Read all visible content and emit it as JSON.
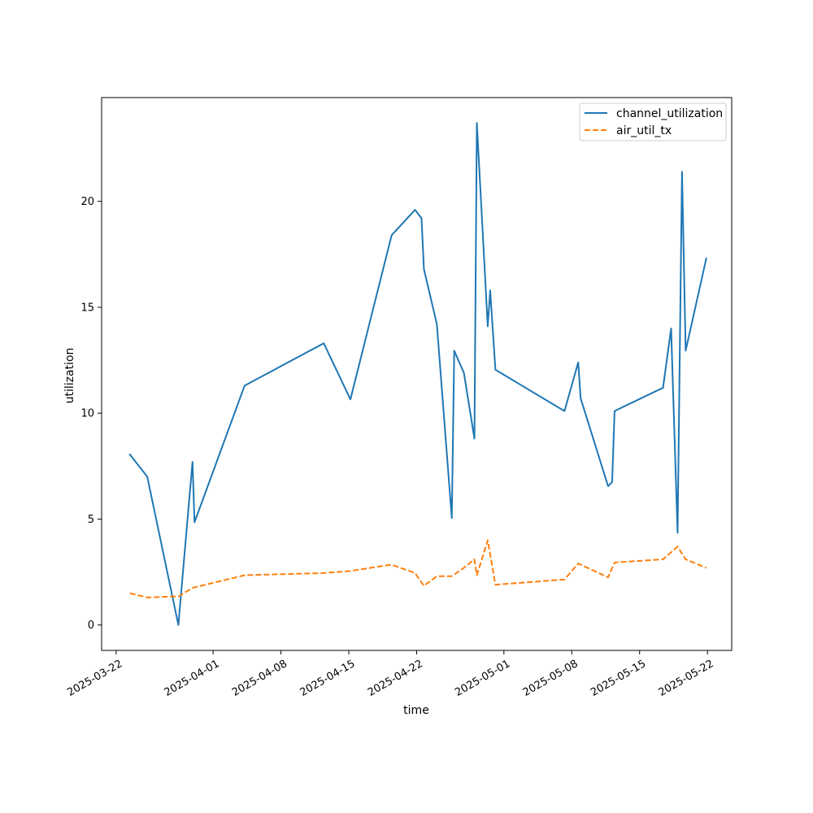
{
  "chart_data": {
    "type": "line",
    "title": "",
    "xlabel": "time",
    "ylabel": "utilization",
    "x_ticks": [
      "2025-03-22",
      "2025-04-01",
      "2025-04-08",
      "2025-04-15",
      "2025-04-22",
      "2025-05-01",
      "2025-05-08",
      "2025-05-15",
      "2025-05-22"
    ],
    "y_ticks": [
      "0",
      "5",
      "10",
      "15",
      "20"
    ],
    "xlim": [
      "2025-03-20T12:00",
      "2025-05-24T12:00"
    ],
    "ylim": [
      -1.2,
      24.9
    ],
    "grid": false,
    "legend_position": "top-right",
    "series": [
      {
        "name": "channel_utilization",
        "color": "#1f77b4",
        "dash": "solid",
        "points": [
          {
            "x": "2025-03-23T10:00",
            "y": 8.05
          },
          {
            "x": "2025-03-25T05:00",
            "y": 7.0
          },
          {
            "x": "2025-03-28T10:00",
            "y": 0.0
          },
          {
            "x": "2025-03-29T21:00",
            "y": 7.7
          },
          {
            "x": "2025-03-30T02:00",
            "y": 4.85
          },
          {
            "x": "2025-04-04T06:00",
            "y": 11.3
          },
          {
            "x": "2025-04-12T10:00",
            "y": 13.3
          },
          {
            "x": "2025-04-15T04:00",
            "y": 10.65
          },
          {
            "x": "2025-04-19T10:00",
            "y": 18.4
          },
          {
            "x": "2025-04-21T20:00",
            "y": 19.6
          },
          {
            "x": "2025-04-22T12:00",
            "y": 19.2
          },
          {
            "x": "2025-04-22T18:00",
            "y": 16.8
          },
          {
            "x": "2025-04-24T02:00",
            "y": 14.2
          },
          {
            "x": "2025-04-25T15:00",
            "y": 5.05
          },
          {
            "x": "2025-04-25T21:00",
            "y": 12.95
          },
          {
            "x": "2025-04-26T21:00",
            "y": 11.9
          },
          {
            "x": "2025-04-27T23:00",
            "y": 8.8
          },
          {
            "x": "2025-04-28T05:00",
            "y": 23.7
          },
          {
            "x": "2025-04-29T08:00",
            "y": 14.1
          },
          {
            "x": "2025-04-29T14:00",
            "y": 15.8
          },
          {
            "x": "2025-04-30T03:00",
            "y": 12.05
          },
          {
            "x": "2025-05-07T06:00",
            "y": 10.1
          },
          {
            "x": "2025-05-08T16:00",
            "y": 12.4
          },
          {
            "x": "2025-05-08T22:00",
            "y": 10.7
          },
          {
            "x": "2025-05-11T18:00",
            "y": 6.55
          },
          {
            "x": "2025-05-12T04:00",
            "y": 6.75
          },
          {
            "x": "2025-05-12T10:00",
            "y": 10.1
          },
          {
            "x": "2025-05-17T10:00",
            "y": 11.2
          },
          {
            "x": "2025-05-18T06:00",
            "y": 14.0
          },
          {
            "x": "2025-05-18T22:00",
            "y": 4.35
          },
          {
            "x": "2025-05-19T09:00",
            "y": 21.4
          },
          {
            "x": "2025-05-19T18:00",
            "y": 12.95
          },
          {
            "x": "2025-05-21T21:00",
            "y": 17.3
          }
        ]
      },
      {
        "name": "air_util_tx",
        "color": "#ff7f0e",
        "dash": "dashed",
        "points": [
          {
            "x": "2025-03-23T10:00",
            "y": 1.5
          },
          {
            "x": "2025-03-25T05:00",
            "y": 1.3
          },
          {
            "x": "2025-03-28T10:00",
            "y": 1.35
          },
          {
            "x": "2025-03-29T21:00",
            "y": 1.75
          },
          {
            "x": "2025-04-04T06:00",
            "y": 2.35
          },
          {
            "x": "2025-04-12T10:00",
            "y": 2.45
          },
          {
            "x": "2025-04-15T04:00",
            "y": 2.55
          },
          {
            "x": "2025-04-19T10:00",
            "y": 2.85
          },
          {
            "x": "2025-04-21T20:00",
            "y": 2.45
          },
          {
            "x": "2025-04-22T18:00",
            "y": 1.85
          },
          {
            "x": "2025-04-24T02:00",
            "y": 2.3
          },
          {
            "x": "2025-04-25T15:00",
            "y": 2.3
          },
          {
            "x": "2025-04-26T21:00",
            "y": 2.7
          },
          {
            "x": "2025-04-27T23:00",
            "y": 3.1
          },
          {
            "x": "2025-04-28T05:00",
            "y": 2.35
          },
          {
            "x": "2025-04-29T08:00",
            "y": 4.0
          },
          {
            "x": "2025-04-30T03:00",
            "y": 1.9
          },
          {
            "x": "2025-05-07T06:00",
            "y": 2.15
          },
          {
            "x": "2025-05-08T16:00",
            "y": 2.9
          },
          {
            "x": "2025-05-11T18:00",
            "y": 2.25
          },
          {
            "x": "2025-05-12T10:00",
            "y": 2.95
          },
          {
            "x": "2025-05-17T10:00",
            "y": 3.1
          },
          {
            "x": "2025-05-18T22:00",
            "y": 3.7
          },
          {
            "x": "2025-05-19T18:00",
            "y": 3.1
          },
          {
            "x": "2025-05-21T21:00",
            "y": 2.7
          }
        ]
      }
    ]
  }
}
